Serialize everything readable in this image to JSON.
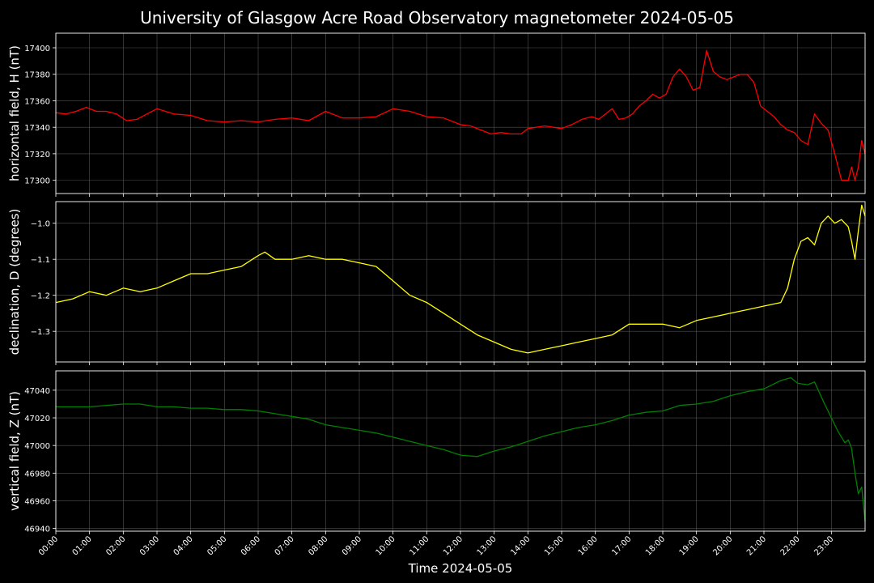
{
  "title": "University of Glasgow Acre Road Observatory magnetometer 2024-05-05",
  "colors": {
    "background": "#000000",
    "grid": "#666666",
    "axes": "#ffffff"
  },
  "chart_data": [
    {
      "type": "line",
      "ylabel": "horizontal field, H (nT)",
      "color": "#ff0000",
      "yticks": [
        17300,
        17320,
        17340,
        17360,
        17380,
        17400
      ],
      "ylim": [
        17290,
        17411
      ],
      "x_hours": [
        0,
        0.3,
        0.6,
        0.9,
        1.2,
        1.5,
        1.8,
        2.1,
        2.4,
        2.7,
        3.0,
        3.5,
        4.0,
        4.5,
        5.0,
        5.5,
        6.0,
        6.5,
        7.0,
        7.5,
        8.0,
        8.5,
        9.0,
        9.5,
        10.0,
        10.5,
        11.0,
        11.5,
        12.0,
        12.3,
        12.6,
        12.9,
        13.2,
        13.5,
        13.8,
        14.0,
        14.5,
        15.0,
        15.3,
        15.6,
        15.9,
        16.1,
        16.3,
        16.5,
        16.7,
        16.9,
        17.1,
        17.3,
        17.5,
        17.7,
        17.9,
        18.1,
        18.3,
        18.5,
        18.7,
        18.9,
        19.1,
        19.3,
        19.5,
        19.7,
        19.9,
        20.1,
        20.3,
        20.5,
        20.7,
        20.9,
        21.1,
        21.3,
        21.5,
        21.7,
        21.9,
        22.1,
        22.3,
        22.5,
        22.7,
        22.9,
        23.1,
        23.3,
        23.5,
        23.6,
        23.7,
        23.8,
        23.9,
        24.0
      ],
      "values": [
        17351,
        17350,
        17352,
        17355,
        17352,
        17352,
        17350,
        17345,
        17346,
        17350,
        17354,
        17350,
        17349,
        17345,
        17344,
        17345,
        17344,
        17346,
        17347,
        17345,
        17352,
        17347,
        17347,
        17348,
        17354,
        17352,
        17348,
        17347,
        17342,
        17341,
        17338,
        17335,
        17336,
        17335,
        17335,
        17339,
        17341,
        17339,
        17342,
        17346,
        17348,
        17346,
        17350,
        17354,
        17346,
        17347,
        17350,
        17356,
        17360,
        17365,
        17362,
        17365,
        17378,
        17384,
        17378,
        17368,
        17370,
        17398,
        17382,
        17378,
        17376,
        17378,
        17380,
        17380,
        17374,
        17356,
        17352,
        17348,
        17342,
        17338,
        17336,
        17330,
        17327,
        17350,
        17343,
        17338,
        17320,
        17300,
        17300,
        17310,
        17300,
        17310,
        17330,
        17320
      ]
    },
    {
      "type": "line",
      "ylabel": "declination, D (degrees)",
      "color": "#ffff00",
      "yticks": [
        -1.3,
        -1.2,
        -1.1,
        -1.0
      ],
      "yticklabels": [
        "−1.3",
        "−1.2",
        "−1.1",
        "−1.0"
      ],
      "ylim": [
        -1.385,
        -0.94
      ],
      "x_hours": [
        0,
        0.5,
        1.0,
        1.5,
        2.0,
        2.5,
        3.0,
        3.5,
        4.0,
        4.5,
        5.0,
        5.5,
        6.0,
        6.2,
        6.5,
        7.0,
        7.5,
        8.0,
        8.5,
        9.0,
        9.5,
        10.0,
        10.5,
        11.0,
        11.5,
        12.0,
        12.5,
        13.0,
        13.5,
        14.0,
        14.5,
        15.0,
        15.5,
        16.0,
        16.5,
        17.0,
        17.5,
        18.0,
        18.5,
        19.0,
        19.5,
        20.0,
        20.5,
        21.0,
        21.5,
        21.7,
        21.9,
        22.1,
        22.3,
        22.5,
        22.7,
        22.9,
        23.1,
        23.3,
        23.5,
        23.6,
        23.7,
        23.8,
        23.9,
        24.0
      ],
      "values": [
        -1.22,
        -1.21,
        -1.19,
        -1.2,
        -1.18,
        -1.19,
        -1.18,
        -1.16,
        -1.14,
        -1.14,
        -1.13,
        -1.12,
        -1.09,
        -1.08,
        -1.1,
        -1.1,
        -1.09,
        -1.1,
        -1.1,
        -1.11,
        -1.12,
        -1.16,
        -1.2,
        -1.22,
        -1.25,
        -1.28,
        -1.31,
        -1.33,
        -1.35,
        -1.36,
        -1.35,
        -1.34,
        -1.33,
        -1.32,
        -1.31,
        -1.28,
        -1.28,
        -1.28,
        -1.29,
        -1.27,
        -1.26,
        -1.25,
        -1.24,
        -1.23,
        -1.22,
        -1.18,
        -1.1,
        -1.05,
        -1.04,
        -1.06,
        -1.0,
        -0.98,
        -1.0,
        -0.99,
        -1.01,
        -1.05,
        -1.1,
        -1.02,
        -0.95,
        -0.98
      ]
    },
    {
      "type": "line",
      "ylabel": "vertical field, Z (nT)",
      "color": "#008000",
      "yticks": [
        46940,
        46960,
        46980,
        47000,
        47020,
        47040
      ],
      "ylim": [
        46938,
        47054
      ],
      "x_hours": [
        0,
        0.5,
        1.0,
        1.5,
        2.0,
        2.5,
        3.0,
        3.5,
        4.0,
        4.5,
        5.0,
        5.5,
        6.0,
        6.5,
        7.0,
        7.5,
        8.0,
        8.5,
        9.0,
        9.5,
        10.0,
        10.5,
        11.0,
        11.5,
        12.0,
        12.5,
        13.0,
        13.5,
        14.0,
        14.5,
        15.0,
        15.5,
        16.0,
        16.5,
        17.0,
        17.5,
        18.0,
        18.5,
        19.0,
        19.5,
        20.0,
        20.5,
        21.0,
        21.5,
        21.8,
        22.0,
        22.3,
        22.5,
        22.8,
        23.0,
        23.2,
        23.4,
        23.5,
        23.6,
        23.7,
        23.8,
        23.9,
        24.0
      ],
      "values": [
        47028,
        47028,
        47028,
        47029,
        47030,
        47030,
        47028,
        47028,
        47027,
        47027,
        47026,
        47026,
        47025,
        47023,
        47021,
        47019,
        47015,
        47013,
        47011,
        47009,
        47006,
        47003,
        47000,
        46997,
        46993,
        46992,
        46996,
        46999,
        47003,
        47007,
        47010,
        47013,
        47015,
        47018,
        47022,
        47024,
        47025,
        47029,
        47030,
        47032,
        47036,
        47039,
        47041,
        47047,
        47049,
        47045,
        47044,
        47046,
        47030,
        47020,
        47010,
        47002,
        47004,
        46998,
        46980,
        46965,
        46970,
        46945
      ]
    }
  ],
  "xaxis": {
    "label": "Time 2024-05-05",
    "ticklabels": [
      "00:00",
      "01:00",
      "02:00",
      "03:00",
      "04:00",
      "05:00",
      "06:00",
      "07:00",
      "08:00",
      "09:00",
      "10:00",
      "11:00",
      "12:00",
      "13:00",
      "14:00",
      "15:00",
      "16:00",
      "17:00",
      "18:00",
      "19:00",
      "20:00",
      "21:00",
      "22:00",
      "23:00"
    ],
    "range_hours": [
      0,
      24
    ]
  }
}
